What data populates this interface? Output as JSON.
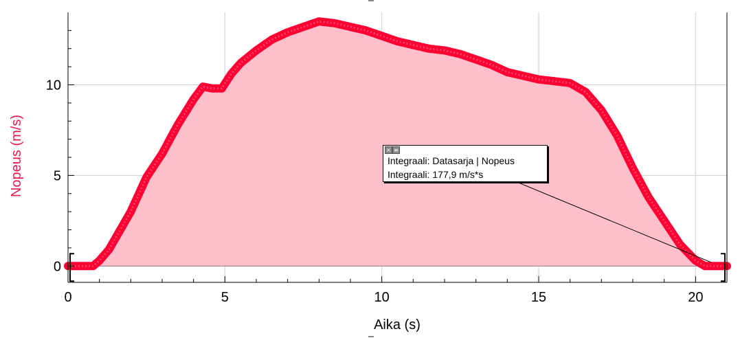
{
  "chart_data": {
    "type": "area",
    "xlabel": "Aika (s)",
    "ylabel": "Nopeus (m/s)",
    "xlim": [
      0,
      21
    ],
    "ylim": [
      -0.9,
      14
    ],
    "x_ticks": [
      0,
      5,
      10,
      15,
      20
    ],
    "y_ticks": [
      0,
      5,
      10
    ],
    "grid": true,
    "series": [
      {
        "x": [
          0.0,
          0.5,
          0.8,
          1.0,
          1.3,
          1.6,
          2.0,
          2.5,
          3.0,
          3.5,
          4.0,
          4.3,
          4.6,
          4.9,
          5.2,
          5.5,
          6.0,
          6.5,
          7.0,
          7.5,
          8.0,
          8.5,
          9.0,
          9.5,
          10.0,
          10.5,
          11.0,
          11.5,
          12.0,
          12.5,
          13.0,
          13.5,
          14.0,
          14.5,
          15.0,
          15.5,
          16.0,
          16.5,
          17.0,
          17.5,
          18.0,
          18.5,
          19.0,
          19.5,
          20.0,
          20.3,
          20.6,
          21.0
        ],
        "y": [
          0.0,
          0.0,
          0.0,
          0.3,
          0.9,
          1.8,
          3.0,
          4.9,
          6.2,
          7.8,
          9.2,
          9.9,
          9.8,
          9.8,
          10.6,
          11.2,
          11.9,
          12.5,
          12.9,
          13.2,
          13.5,
          13.4,
          13.2,
          13.0,
          12.7,
          12.4,
          12.2,
          12.0,
          11.9,
          11.7,
          11.4,
          11.1,
          10.7,
          10.5,
          10.3,
          10.2,
          10.1,
          9.6,
          8.6,
          7.2,
          5.4,
          3.8,
          2.5,
          1.2,
          0.3,
          0.0,
          0.0,
          0.0
        ],
        "color": "#ff0033",
        "fill": "#ffc0cc"
      }
    ],
    "annotation": {
      "line1": "Integraali: Datasarja | Nopeus",
      "line2": "Integraali: 177,9 m/s*s"
    }
  }
}
